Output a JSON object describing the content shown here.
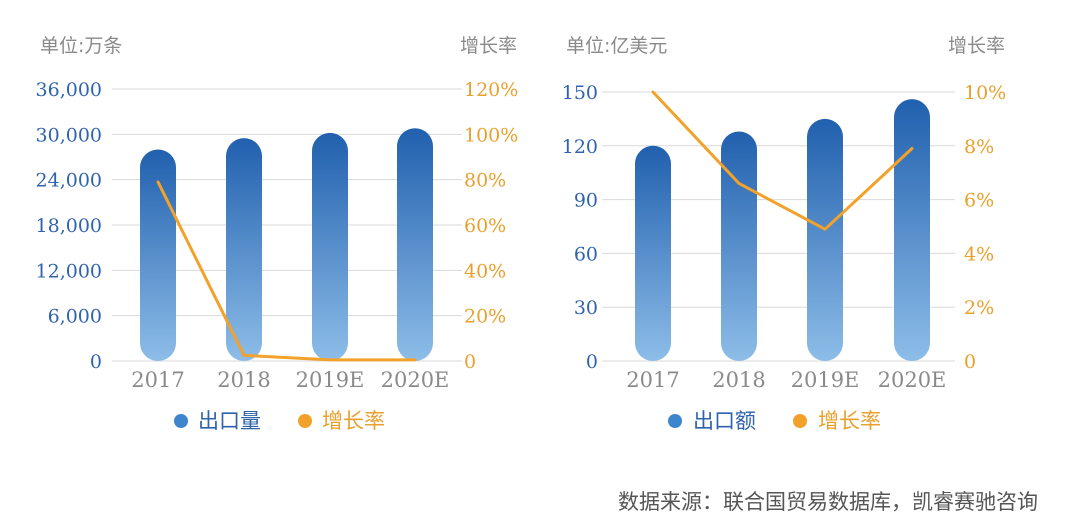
{
  "colors": {
    "bar_top": "#2160ae",
    "bar_bottom": "#8dbde8",
    "line": "#f2a12b",
    "legend_bar": "#3f85cd",
    "legend_line": "#f2a12b",
    "grid": "#d9d9d9",
    "left_axis_text": "#2f63ad",
    "right_axis_text": "#e9a02c",
    "muted_text": "#8a8a8a"
  },
  "chart_data": [
    {
      "type": "bar",
      "left_unit": "单位:万条",
      "right_unit": "增长率",
      "categories": [
        "2017",
        "2018",
        "2019E",
        "2020E"
      ],
      "series": [
        {
          "name": "出口量",
          "type": "bar",
          "axis": "left",
          "values": [
            28000,
            29500,
            30200,
            30800
          ]
        },
        {
          "name": "增长率",
          "type": "line",
          "axis": "right",
          "values": [
            79,
            2.5,
            0.5,
            0.5
          ]
        }
      ],
      "left_ticks": [
        "0",
        "6,000",
        "12,000",
        "18,000",
        "24,000",
        "30,000",
        "36,000"
      ],
      "right_ticks": [
        "0",
        "20%",
        "40%",
        "60%",
        "80%",
        "100%",
        "120%"
      ],
      "ylim": [
        0,
        36000
      ],
      "y2lim": [
        0,
        120
      ],
      "grid": true,
      "legend": [
        "出口量",
        "增长率"
      ]
    },
    {
      "type": "bar",
      "left_unit": "单位:亿美元",
      "right_unit": "增长率",
      "categories": [
        "2017",
        "2018",
        "2019E",
        "2020E"
      ],
      "series": [
        {
          "name": "出口额",
          "type": "bar",
          "axis": "left",
          "values": [
            120,
            128,
            135,
            146
          ]
        },
        {
          "name": "增长率",
          "type": "line",
          "axis": "right",
          "values": [
            10,
            6.6,
            4.9,
            7.9
          ]
        }
      ],
      "left_ticks": [
        "0",
        "30",
        "60",
        "90",
        "120",
        "150"
      ],
      "right_ticks": [
        "0",
        "2%",
        "4%",
        "6%",
        "8%",
        "10%"
      ],
      "ylim": [
        0,
        150
      ],
      "y2lim": [
        0,
        10
      ],
      "grid": true,
      "legend": [
        "出口额",
        "增长率"
      ]
    }
  ],
  "source": "数据来源：联合国贸易数据库，凯睿赛驰咨询"
}
